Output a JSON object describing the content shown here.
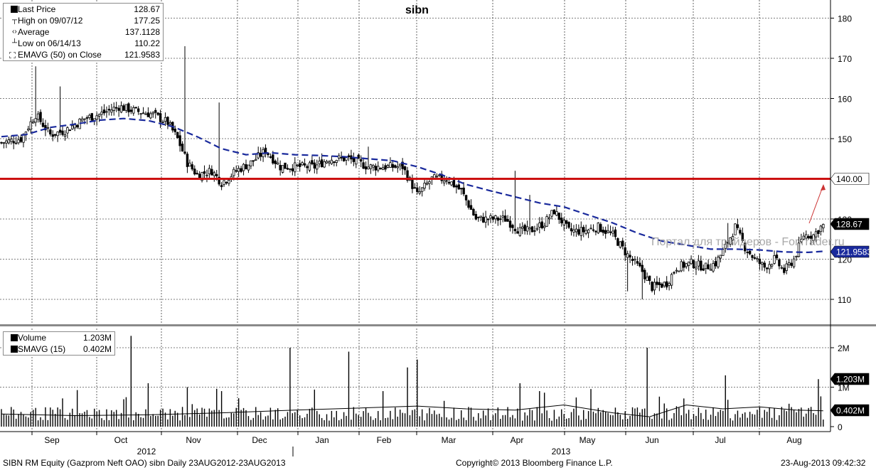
{
  "title": "sibn",
  "legend_price": [
    {
      "label": "Last Price",
      "value": "128.67",
      "icon": "filled-square-icon"
    },
    {
      "label": "High on 09/07/12",
      "value": "177.25",
      "icon": "high-marker-icon"
    },
    {
      "label": "Average",
      "value": "137.1128",
      "icon": "average-marker-icon"
    },
    {
      "label": "Low on 06/14/13",
      "value": "110.22",
      "icon": "low-marker-icon"
    },
    {
      "label": "EMAVG (50) on Close",
      "value": "121.9583",
      "icon": "dashed-box-icon"
    }
  ],
  "legend_volume": [
    {
      "label": "Volume",
      "value": "1.203M",
      "icon": "filled-square-icon"
    },
    {
      "label": "SMAVG (15)",
      "value": "0.402M",
      "icon": "filled-square-icon"
    }
  ],
  "badges": {
    "resistance": "140.00",
    "last_price": "128.67",
    "ema": "121.9583",
    "volume": "1.203M",
    "smavg": "0.402M"
  },
  "colors": {
    "resistance_line": "#cc1111",
    "ema_line": "#1a2a9c",
    "ema_badge": "#1a2a9c",
    "arrow": "#cc3333",
    "candles": "#000000",
    "volume_bars": "#000000"
  },
  "watermark": "Портал для трейдеров - ForTrader.ru",
  "footer": {
    "left": "SIBN RM Equity (Gazprom Neft OAO) sibn  Daily 23AUG2012-23AUG2013",
    "center": "Copyright© 2013 Bloomberg Finance L.P.",
    "right": "23-Aug-2013 09:42:32"
  },
  "chart_data": [
    {
      "type": "candlestick",
      "title": "sibn",
      "x_labels": [
        "Sep",
        "Oct",
        "Nov",
        "Dec",
        "Jan",
        "Feb",
        "Mar",
        "Apr",
        "May",
        "Jun",
        "Jul",
        "Aug"
      ],
      "year_labels": [
        "2012",
        "2013"
      ],
      "y_ticks": [
        110,
        120,
        130,
        140,
        150,
        160,
        170,
        180
      ],
      "ylim": [
        103,
        182
      ],
      "grid": true,
      "legend_position": "top-left",
      "horizontal_line": 140.0,
      "series": [
        {
          "name": "EMAVG (50) on Close",
          "style": "dashed",
          "points": [
            [
              0,
              150.5
            ],
            [
              10,
              151
            ],
            [
              20,
              152.8
            ],
            [
              30,
              153.6
            ],
            [
              40,
              154.6
            ],
            [
              50,
              155
            ],
            [
              60,
              154.5
            ],
            [
              70,
              153
            ],
            [
              80,
              150.5
            ],
            [
              90,
              147.5
            ],
            [
              100,
              146
            ],
            [
              110,
              146.5
            ],
            [
              120,
              146
            ],
            [
              130,
              145.8
            ],
            [
              140,
              145.5
            ],
            [
              150,
              145
            ],
            [
              160,
              144.5
            ],
            [
              170,
              143
            ],
            [
              180,
              141
            ],
            [
              190,
              138.6
            ],
            [
              200,
              137
            ],
            [
              210,
              135.5
            ],
            [
              220,
              134
            ],
            [
              230,
              133
            ],
            [
              240,
              131
            ],
            [
              250,
              129
            ],
            [
              260,
              126.5
            ],
            [
              270,
              124.5
            ],
            [
              280,
              123.5
            ],
            [
              290,
              122.5
            ],
            [
              300,
              122.5
            ],
            [
              310,
              122.3
            ],
            [
              320,
              121.8
            ],
            [
              330,
              121.7
            ],
            [
              336,
              121.96
            ]
          ]
        }
      ],
      "last_close": 128.67,
      "high": 177.25,
      "low": 110.22
    },
    {
      "type": "bar",
      "title": "Volume",
      "y_ticks": [
        "0",
        "1M",
        "2M"
      ],
      "ylim": [
        0,
        2.4
      ],
      "series": [
        {
          "name": "Volume",
          "unit": "M",
          "last": 1.203
        },
        {
          "name": "SMAVG (15)",
          "unit": "M",
          "last": 0.402
        }
      ]
    }
  ]
}
